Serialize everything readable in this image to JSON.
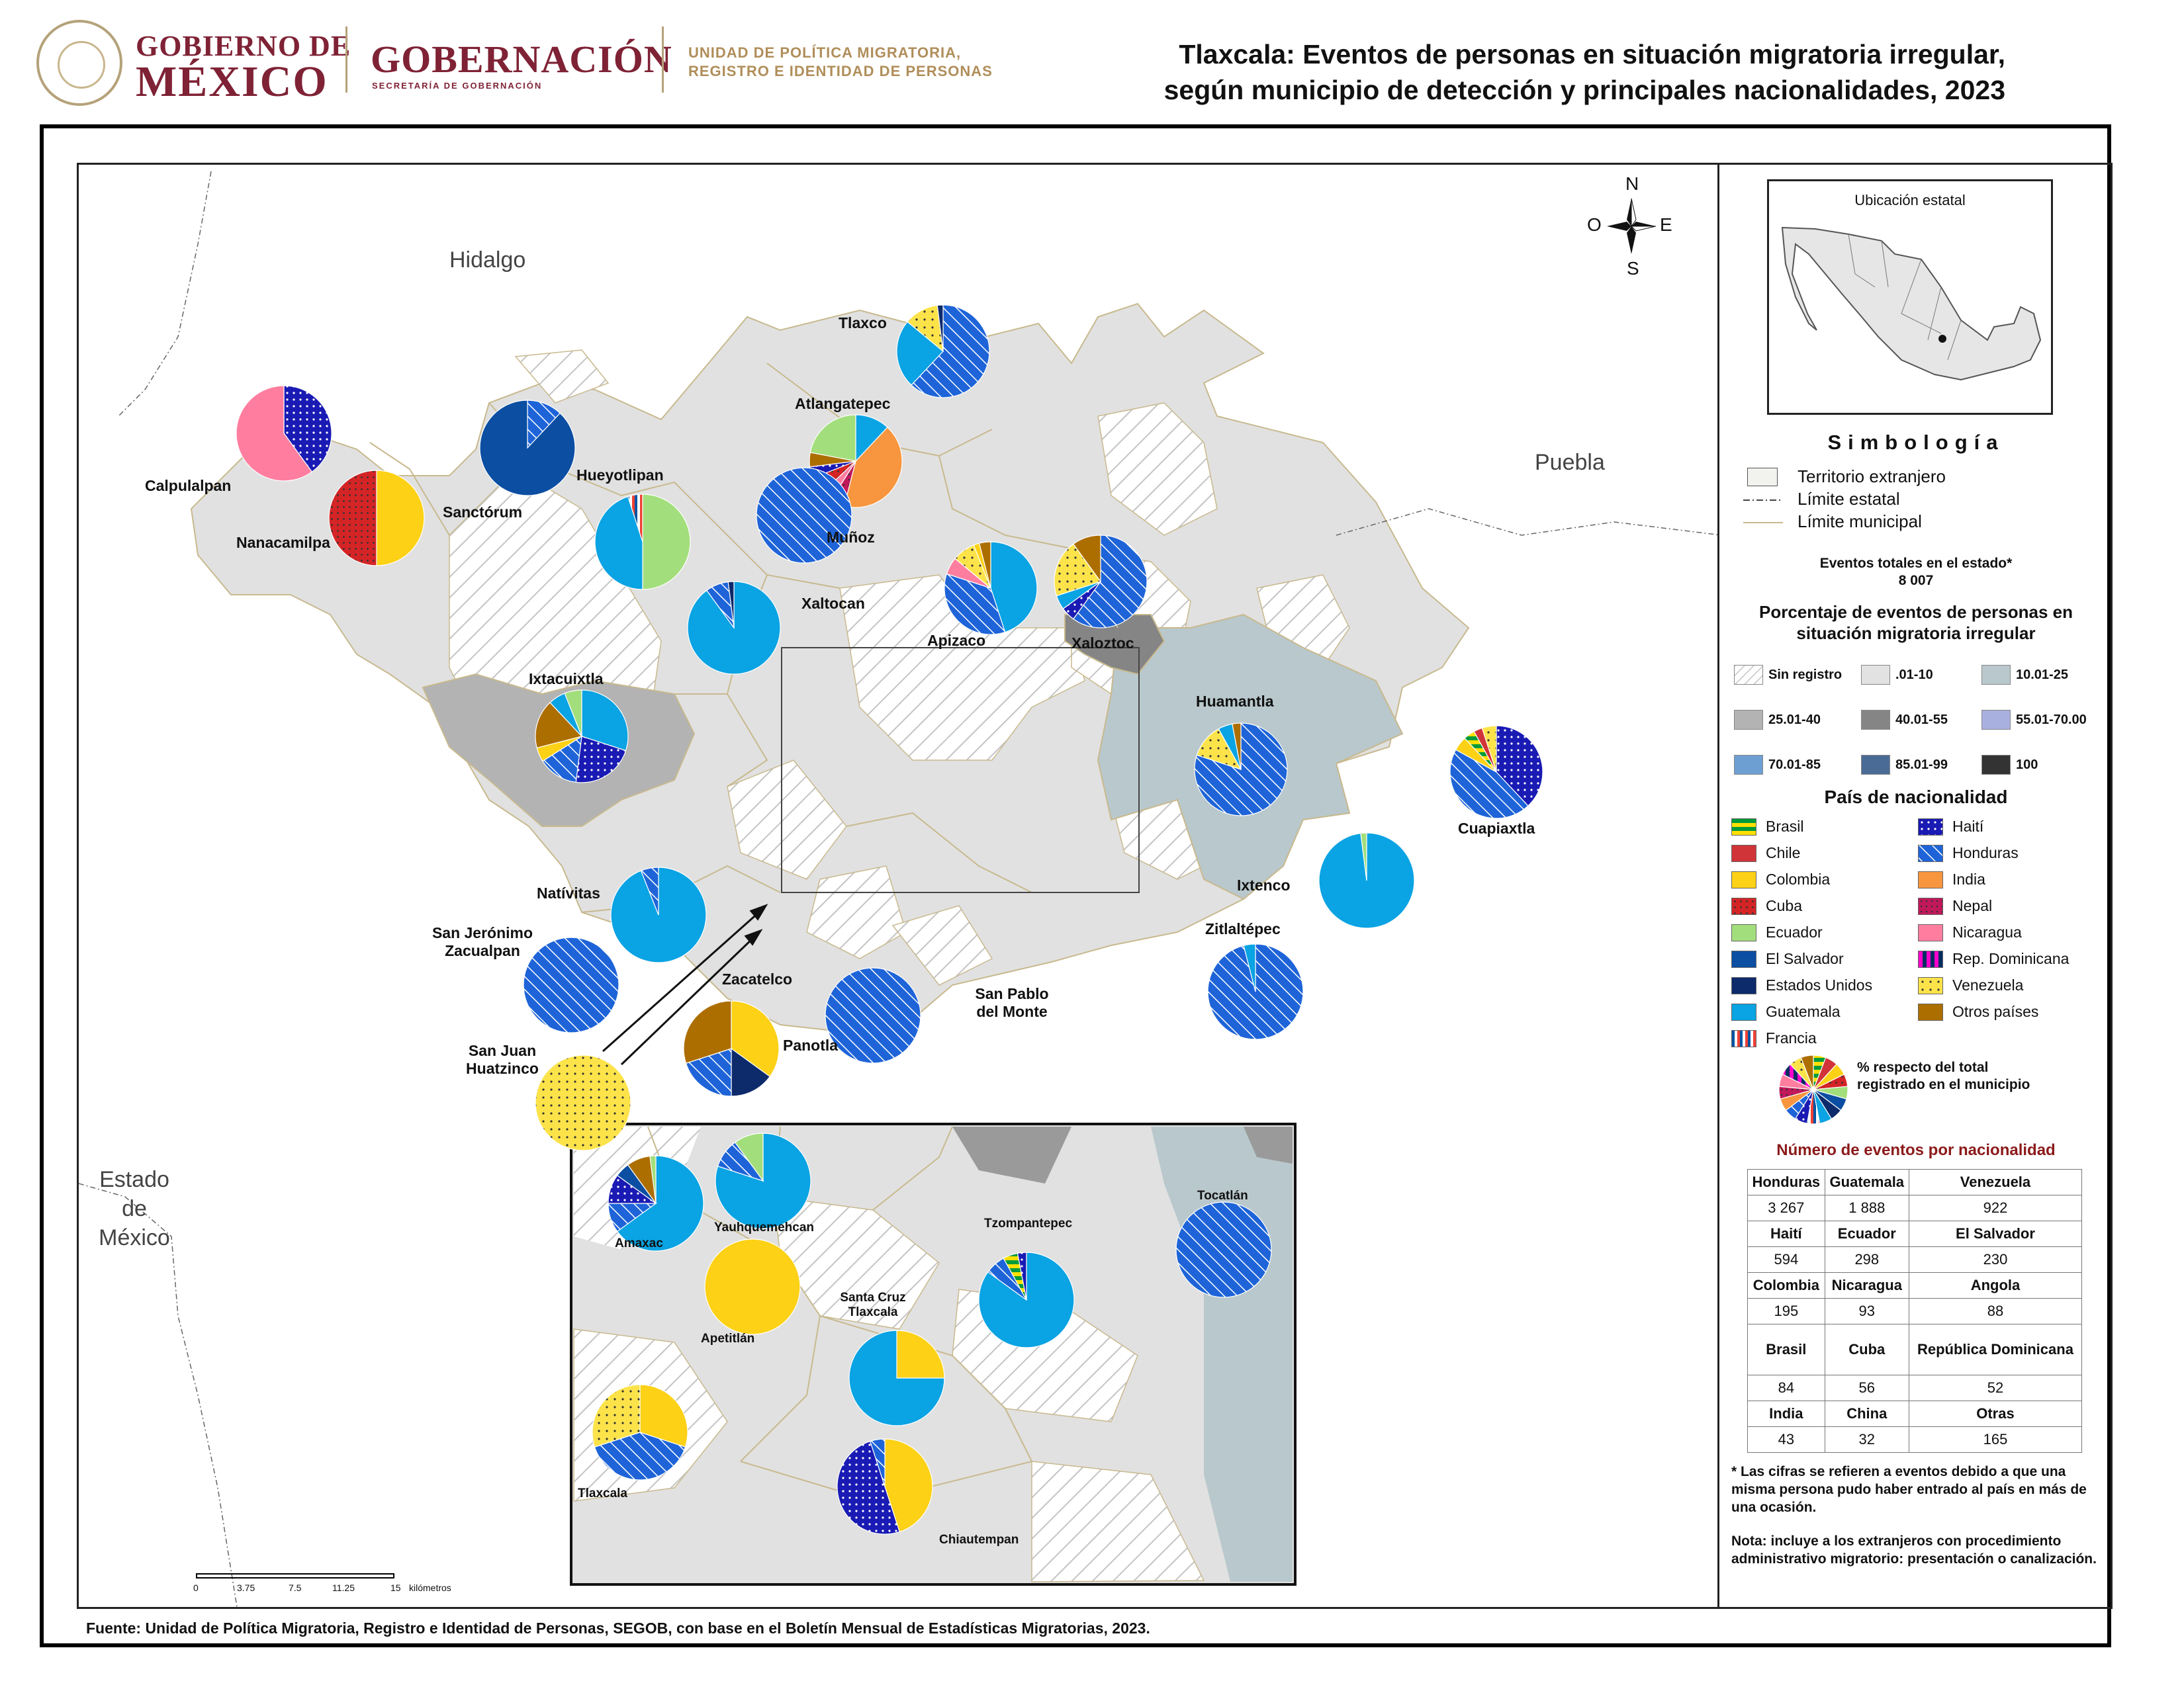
{
  "header": {
    "gov_line1": "GOBIERNO DE",
    "gov_line2": "MÉXICO",
    "ministry": "GOBERNACIÓN",
    "ministry_sub": "SECRETARÍA DE GOBERNACIÓN",
    "unit_line1": "UNIDAD DE POLÍTICA MIGRATORIA,",
    "unit_line2": "REGISTRO E IDENTIDAD DE PERSONAS",
    "title_line1": "Tlaxcala: Eventos de personas en situación migratoria irregular,",
    "title_line2": "según municipio de detección y principales nacionalidades, 2023"
  },
  "map": {
    "neighbors": {
      "hidalgo": "Hidalgo",
      "puebla": "Puebla",
      "estado_mexico": [
        "Estado",
        "de",
        "México"
      ]
    },
    "compass": {
      "n": "N",
      "s": "S",
      "e": "E",
      "o": "O"
    },
    "scale": {
      "ticks": [
        "0",
        "3.75",
        "7.5",
        "11.25",
        "15"
      ],
      "unit": "kilómetros"
    },
    "municipalities": {
      "tlaxco": "Tlaxco",
      "atlangatepec": "Atlangatepec",
      "calpulalpan": "Calpulalpan",
      "nanacamilpa": "Nanacamilpa",
      "sanctorum": "Sanctórum",
      "hueyotlipan": "Hueyotlipan",
      "munoz": "Muñoz",
      "xaltocan": "Xaltocan",
      "apizaco": "Apizaco",
      "xaloztoc": "Xaloztoc",
      "ixtacuixtla": "Ixtacuixtla",
      "huamantla": "Huamantla",
      "cuapiaxtla": "Cuapiaxtla",
      "ixtenco": "Ixtenco",
      "zitlaltepec": "Zitlaltépec",
      "nativitas": "Natívitas",
      "san_jeronimo_1": "San Jerónimo",
      "san_jeronimo_2": "Zacualpan",
      "zacatelco": "Zacatelco",
      "san_pablo_1": "San Pablo",
      "san_pablo_2": "del Monte",
      "panotla": "Panotla",
      "san_juan_1": "San Juan",
      "san_juan_2": "Huatzinco"
    },
    "inset": {
      "amaxac": "Amaxac",
      "yauhquemehcan": "Yauhquemehcan",
      "tzompantepec": "Tzompantepec",
      "tocatlan": "Tocatlán",
      "santa_cruz_1": "Santa Cruz",
      "santa_cruz_2": "Tlaxcala",
      "apetitlan": "Apetitlán",
      "tlaxcala": "Tlaxcala",
      "chiautempan": "Chiautempan"
    },
    "pies": {
      "tlaxco": [
        [
          "Honduras",
          0.62
        ],
        [
          "Guatemala",
          0.24
        ],
        [
          "Venezuela",
          0.12
        ],
        [
          "Estados Unidos",
          0.02
        ]
      ],
      "atlangatepec": [
        [
          "Guatemala",
          0.12
        ],
        [
          "India",
          0.42
        ],
        [
          "Nepal",
          0.05
        ],
        [
          "Nicaragua",
          0.04
        ],
        [
          "Cuba",
          0.06
        ],
        [
          "Haití",
          0.04
        ],
        [
          "Otros países",
          0.05
        ],
        [
          "Ecuador",
          0.22
        ]
      ],
      "calpulalpan": [
        [
          "Haití",
          0.4
        ],
        [
          "Nicaragua",
          0.6
        ]
      ],
      "nanacamilpa": [
        [
          "Colombia",
          0.5
        ],
        [
          "Cuba",
          0.5
        ]
      ],
      "sanctorum": [
        [
          "Honduras",
          0.12
        ],
        [
          "El Salvador",
          0.88
        ]
      ],
      "hueyotlipan": [
        [
          "Ecuador",
          0.5
        ],
        [
          "Guatemala",
          0.45
        ],
        [
          "Francia",
          0.05
        ]
      ],
      "munoz": [
        [
          "Honduras",
          1.0
        ]
      ],
      "xaltocan": [
        [
          "Guatemala",
          0.9
        ],
        [
          "Honduras",
          0.08
        ],
        [
          "Estados Unidos",
          0.02
        ]
      ],
      "apizaco": [
        [
          "Guatemala",
          0.45
        ],
        [
          "Honduras",
          0.35
        ],
        [
          "Nicaragua",
          0.06
        ],
        [
          "Venezuela",
          0.08
        ],
        [
          "Colombia",
          0.02
        ],
        [
          "Otros países",
          0.04
        ]
      ],
      "xaloztoc": [
        [
          "Honduras",
          0.6
        ],
        [
          "Haití",
          0.05
        ],
        [
          "Guatemala",
          0.05
        ],
        [
          "Venezuela",
          0.2
        ],
        [
          "Otros países",
          0.1
        ]
      ],
      "ixtacuixtla": [
        [
          "Guatemala",
          0.3
        ],
        [
          "Haití",
          0.22
        ],
        [
          "Honduras",
          0.14
        ],
        [
          "Colombia",
          0.05
        ],
        [
          "Otros países",
          0.17
        ],
        [
          "Guatemala",
          0.06
        ],
        [
          "Ecuador",
          0.06
        ]
      ],
      "huamantla": [
        [
          "Honduras",
          0.8
        ],
        [
          "Venezuela",
          0.12
        ],
        [
          "Guatemala",
          0.05
        ],
        [
          "Otros países",
          0.03
        ]
      ],
      "cuapiaxtla": [
        [
          "Haití",
          0.38
        ],
        [
          "Honduras",
          0.45
        ],
        [
          "Colombia",
          0.05
        ],
        [
          "Brasil",
          0.04
        ],
        [
          "Chile",
          0.03
        ],
        [
          "Venezuela",
          0.05
        ]
      ],
      "ixtenco": [
        [
          "Guatemala",
          0.98
        ],
        [
          "Ecuador",
          0.02
        ]
      ],
      "zitlaltepec": [
        [
          "Honduras",
          0.96
        ],
        [
          "Guatemala",
          0.04
        ]
      ],
      "nativitas": [
        [
          "Guatemala",
          0.94
        ],
        [
          "Honduras",
          0.06
        ]
      ],
      "san_jeronimo": [
        [
          "Honduras",
          1.0
        ]
      ],
      "zacatelco": [
        [
          "Colombia",
          0.35
        ],
        [
          "Estados Unidos",
          0.15
        ],
        [
          "Honduras",
          0.2
        ],
        [
          "Otros países",
          0.3
        ]
      ],
      "san_pablo": [
        [
          "Honduras",
          1.0
        ]
      ],
      "san_juan": [
        [
          "Venezuela",
          1.0
        ]
      ],
      "i_amaxac": [
        [
          "Guatemala",
          0.65
        ],
        [
          "Honduras",
          0.1
        ],
        [
          "Haití",
          0.1
        ],
        [
          "El Salvador",
          0.05
        ],
        [
          "Otros países",
          0.08
        ],
        [
          "Ecuador",
          0.02
        ]
      ],
      "i_yauhquemehcan": [
        [
          "Guatemala",
          0.8
        ],
        [
          "Honduras",
          0.1
        ],
        [
          "Ecuador",
          0.1
        ]
      ],
      "i_tzompantepec": [
        [
          "Guatemala",
          0.85
        ],
        [
          "Honduras",
          0.07
        ],
        [
          "Brasil",
          0.05
        ],
        [
          "Haití",
          0.03
        ]
      ],
      "i_tocatlan": [
        [
          "Honduras",
          1.0
        ]
      ],
      "i_santa_cruz": [
        [
          "Colombia",
          0.25
        ],
        [
          "Guatemala",
          0.75
        ]
      ],
      "i_apetitlan": [
        [
          "Colombia",
          1.0
        ]
      ],
      "i_tlaxcala": [
        [
          "Colombia",
          0.3
        ],
        [
          "Honduras",
          0.4
        ],
        [
          "Venezuela",
          0.3
        ]
      ],
      "i_chiautempan": [
        [
          "Colombia",
          0.45
        ],
        [
          "Haití",
          0.5
        ],
        [
          "Honduras",
          0.05
        ]
      ]
    }
  },
  "legend": {
    "inset_caption": "Ubicación estatal",
    "simbologia": "Simbología",
    "territorio": "Territorio extranjero",
    "limite_estatal": "Límite estatal",
    "limite_municipal": "Límite municipal",
    "eventos_totales": "Eventos totales en el estado*",
    "eventos_total_value": "8 007",
    "porcentaje_line1": "Porcentaje de eventos de personas en",
    "porcentaje_line2": "situación migratoria irregular",
    "classes": [
      {
        "label": "Sin registro",
        "color": "hatch"
      },
      {
        "label": ".01-10",
        "color": "#e2e2e2"
      },
      {
        "label": "10.01-25",
        "color": "#b9c8cc"
      },
      {
        "label": "25.01-40",
        "color": "#b3b3b3"
      },
      {
        "label": "40.01-55",
        "color": "#858585"
      },
      {
        "label": "55.01-70.00",
        "color": "#a8b0e0"
      },
      {
        "label": "70.01-85",
        "color": "#6e9fd3"
      },
      {
        "label": "85.01-99",
        "color": "#4a6b96"
      },
      {
        "label": "100",
        "color": "#333333"
      }
    ],
    "pais_title": "País de nacionalidad",
    "nationalities_left": [
      "Brasil",
      "Chile",
      "Colombia",
      "Cuba",
      "Ecuador",
      "El Salvador",
      "Estados Unidos",
      "Guatemala",
      "Francia"
    ],
    "nationalities_right": [
      "Haití",
      "Honduras",
      "India",
      "Nepal",
      "Nicaragua",
      "Rep. Dominicana",
      "Venezuela",
      "Otros países"
    ],
    "pie_note_line1": "% respecto del total",
    "pie_note_line2": "registrado en el municipio",
    "numero_eventos_title": "Número de eventos por nacionalidad",
    "events_table": [
      [
        [
          "Honduras",
          "3 267"
        ],
        [
          "Guatemala",
          "1 888"
        ],
        [
          "Venezuela",
          "922"
        ]
      ],
      [
        [
          "Haití",
          "594"
        ],
        [
          "Ecuador",
          "298"
        ],
        [
          "El Salvador",
          "230"
        ]
      ],
      [
        [
          "Colombia",
          "195"
        ],
        [
          "Nicaragua",
          "93"
        ],
        [
          "Angola",
          "88"
        ]
      ],
      [
        [
          "Brasil",
          "84"
        ],
        [
          "Cuba",
          "56"
        ],
        [
          "República Dominicana",
          "52"
        ]
      ],
      [
        [
          "India",
          "43"
        ],
        [
          "China",
          "32"
        ],
        [
          "Otras",
          "165"
        ]
      ]
    ],
    "footnote": "* Las cifras se refieren a eventos debido a que una misma persona pudo haber entrado al país en más de una ocasión.",
    "nota": "Nota: incluye a los extranjeros con procedimiento administrativo migratorio: presentación o canalización."
  },
  "source": "Fuente: Unidad de Política Migratoria, Registro e Identidad de Personas, SEGOB, con base en el Boletín Mensual de Estadísticas Migratorias, 2023.",
  "colors": {
    "Brasil": "brasil",
    "Chile": "#d13438",
    "Colombia": "#fcd116",
    "Cuba": "cuba",
    "Ecuador": "#a3de7c",
    "El Salvador": "#0b4ea2",
    "Estados Unidos": "#0d2a6b",
    "Guatemala": "#0aa3e3",
    "Francia": "francia",
    "Haití": "haiti",
    "Honduras": "honduras",
    "India": "#f7963e",
    "Nepal": "nepal",
    "Nicaragua": "#ff7ea0",
    "Rep. Dominicana": "repdom",
    "Venezuela": "venezuela",
    "Otros países": "#ad6e00",
    "brand": "#7f2235",
    "gold": "#b5a27a"
  }
}
